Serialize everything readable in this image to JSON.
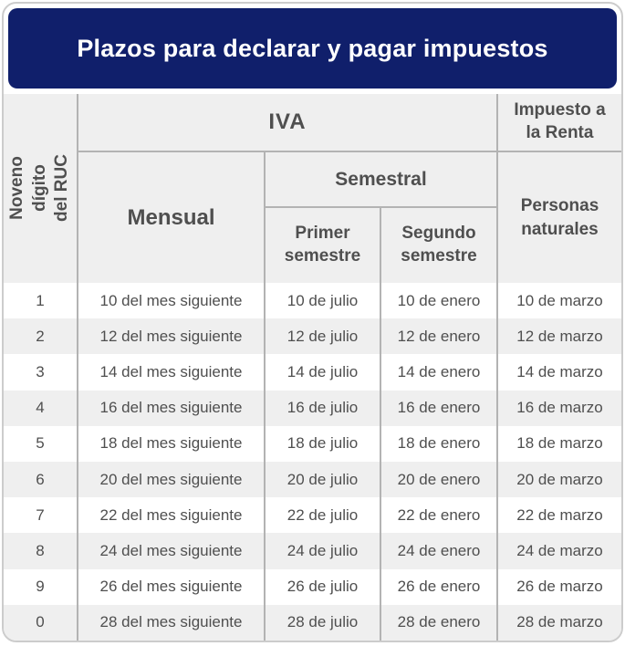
{
  "colors": {
    "navy": "#101f6b",
    "card-border": "#cccccc",
    "header-bg": "#efefef",
    "stripe": "#efefef",
    "row-white": "#ffffff",
    "grid-border": "#b3b3b3",
    "text": "#4f4f4f",
    "title-color": "#ffffff"
  },
  "chart_data": {
    "type": "table",
    "title": "Plazos para declarar y pagar impuestos",
    "headers": {
      "row_axis": "Noveno dígito del RUC",
      "iva_group": "IVA",
      "renta_group": "Impuesto a la Renta",
      "mensual": "Mensual",
      "semestral_group": "Semestral",
      "primer_semestre": "Primer semestre",
      "segundo_semestre": "Segundo semestre",
      "personas_naturales": "Personas naturales"
    },
    "columns": [
      "Noveno dígito del RUC",
      "IVA / Mensual",
      "IVA / Semestral / Primer semestre",
      "IVA / Semestral / Segundo semestre",
      "Impuesto a la Renta / Personas naturales"
    ],
    "rows": [
      {
        "digit": "1",
        "mensual": "10 del mes siguiente",
        "primer_semestre": "10 de julio",
        "segundo_semestre": "10 de enero",
        "renta": "10 de marzo"
      },
      {
        "digit": "2",
        "mensual": "12 del mes siguiente",
        "primer_semestre": "12 de julio",
        "segundo_semestre": "12 de enero",
        "renta": "12 de marzo"
      },
      {
        "digit": "3",
        "mensual": "14 del mes siguiente",
        "primer_semestre": "14 de julio",
        "segundo_semestre": "14 de enero",
        "renta": "14 de marzo"
      },
      {
        "digit": "4",
        "mensual": "16 del mes siguiente",
        "primer_semestre": "16 de julio",
        "segundo_semestre": "16 de enero",
        "renta": "16 de marzo"
      },
      {
        "digit": "5",
        "mensual": "18 del mes siguiente",
        "primer_semestre": "18 de julio",
        "segundo_semestre": "18 de enero",
        "renta": "18 de marzo"
      },
      {
        "digit": "6",
        "mensual": "20 del mes siguiente",
        "primer_semestre": "20 de julio",
        "segundo_semestre": "20 de enero",
        "renta": "20 de marzo"
      },
      {
        "digit": "7",
        "mensual": "22 del mes siguiente",
        "primer_semestre": "22 de julio",
        "segundo_semestre": "22 de enero",
        "renta": "22 de marzo"
      },
      {
        "digit": "8",
        "mensual": "24 del mes siguiente",
        "primer_semestre": "24 de julio",
        "segundo_semestre": "24 de enero",
        "renta": "24 de marzo"
      },
      {
        "digit": "9",
        "mensual": "26 del mes siguiente",
        "primer_semestre": "26 de julio",
        "segundo_semestre": "26 de enero",
        "renta": "26 de marzo"
      },
      {
        "digit": "0",
        "mensual": "28 del mes siguiente",
        "primer_semestre": "28 de julio",
        "segundo_semestre": "28 de enero",
        "renta": "28 de marzo"
      }
    ]
  }
}
